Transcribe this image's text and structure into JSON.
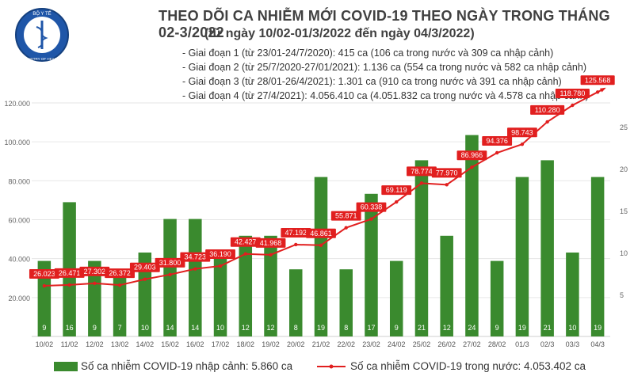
{
  "header": {
    "ministry_logo": "shield-logo",
    "logo_text_top": "BỘ Y TẾ",
    "logo_text_bottom": "MINISTRY OF HEALTH",
    "title": "THEO DÕI CA NHIỄM MỚI COVID-19 THEO NGÀY TRONG THÁNG 02-3/2022",
    "subtitle": "(từ ngày 10/02-01/3/2022 đến ngày 04/3/2022)"
  },
  "phases": [
    "- Giai đoạn 1 (từ 23/01-24/7/2020): 415 ca (106 ca trong nước và 309 ca nhập cảnh)",
    "- Giai đoạn 2 (từ 25/7/2020-27/01/2021): 1.136 ca (554 ca trong nước và 582 ca nhập cảnh)",
    "- Giai đoạn 3 (từ 28/01-26/4/2021): 1.301 ca (910 ca trong nước và 391 ca nhập cảnh)",
    "- Giai đoạn 4 (từ 27/4/2021): 4.056.410 ca (4.051.832 ca trong nước và 4.578 ca nhập cảnh)"
  ],
  "legend": {
    "bars": "Số ca nhiễm COVID-19 nhập cảnh: 5.860 ca",
    "line": "Số ca nhiễm COVID-19 trong nước: 4.053.402 ca"
  },
  "colors": {
    "bar": "#3a8a2e",
    "line": "#e11f1f",
    "grid": "#e6e6e6"
  },
  "chart_data": {
    "type": "bar",
    "categories": [
      "10/02",
      "11/02",
      "12/02",
      "13/02",
      "14/02",
      "15/02",
      "16/02",
      "17/02",
      "18/02",
      "19/02",
      "20/02",
      "21/02",
      "22/02",
      "23/02",
      "24/02",
      "25/02",
      "26/02",
      "27/02",
      "28/02",
      "01/3",
      "02/3",
      "03/3",
      "04/3"
    ],
    "series": [
      {
        "name": "Số ca nhiễm COVID-19 nhập cảnh",
        "axis": "right",
        "type": "bar",
        "values": [
          9,
          16,
          9,
          7,
          10,
          14,
          14,
          10,
          12,
          12,
          8,
          19,
          8,
          17,
          9,
          21,
          12,
          24,
          9,
          19,
          21,
          10,
          19
        ],
        "labels": [
          "9",
          "16",
          "9",
          "7",
          "10",
          "14",
          "14",
          "10",
          "12",
          "12",
          "8",
          "19",
          "8",
          "17",
          "9",
          "21",
          "12",
          "24",
          "9",
          "19",
          "21",
          "10",
          "19"
        ]
      },
      {
        "name": "Số ca nhiễm COVID-19 trong nước",
        "axis": "left",
        "type": "line",
        "values": [
          26023,
          26471,
          27302,
          26372,
          29403,
          31800,
          34723,
          36190,
          42427,
          41968,
          47192,
          46861,
          55871,
          60338,
          69119,
          78774,
          77970,
          86966,
          94376,
          98743,
          110280,
          118780,
          125568
        ],
        "labels": [
          "26.023",
          "26.471",
          "27.302",
          "26.372",
          "29.403",
          "31.800",
          "34.723",
          "36.190",
          "42.427",
          "41.968",
          "47.192",
          "46.861",
          "55.871",
          "60.338",
          "69.119",
          "78.774",
          "77.970",
          "86.966",
          "94.376",
          "98.743",
          "110.280",
          "118.780",
          "125.568"
        ]
      }
    ],
    "left_axis": {
      "ylim": [
        0,
        120000
      ],
      "ticks": [
        "20.000",
        "40.000",
        "60.000",
        "80.000",
        "100.000",
        "120.000"
      ],
      "tick_values": [
        20000,
        40000,
        60000,
        80000,
        100000,
        120000
      ]
    },
    "right_axis": {
      "ylim": [
        0,
        25
      ],
      "ticks": [
        "5",
        "10",
        "15",
        "20",
        "25"
      ],
      "tick_values": [
        5,
        10,
        15,
        20,
        25
      ]
    },
    "grid": true,
    "legend_position": "bottom"
  }
}
